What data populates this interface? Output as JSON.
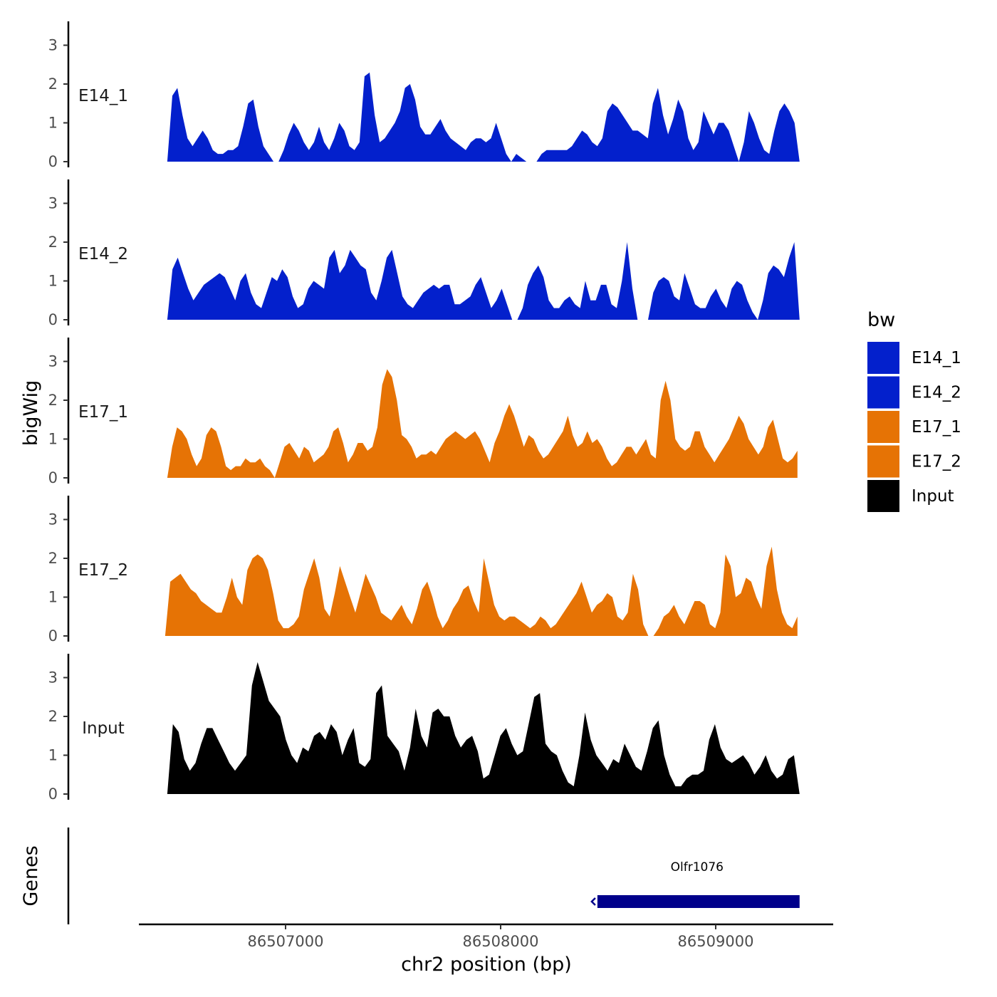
{
  "chart_data": {
    "type": "area",
    "ylabel": "bigWig",
    "xlabel": "chr2 position (bp)",
    "x_ticks": [
      "86507000",
      "86508000",
      "86509000"
    ],
    "x_tick_values": [
      86507000,
      86508000,
      86509000
    ],
    "xlim": [
      86506400,
      86509560
    ],
    "ylim": [
      0,
      3.5
    ],
    "y_ticks": [
      "0",
      "1",
      "2",
      "3"
    ],
    "colors": {
      "E14": "#0320cc",
      "E17": "#e67305",
      "Input": "#000000",
      "gene": "#00008b"
    },
    "legend": {
      "title": "bw",
      "position": "right",
      "entries": [
        {
          "label": "E14_1",
          "color": "#0320cc"
        },
        {
          "label": "E14_2",
          "color": "#0320cc"
        },
        {
          "label": "E17_1",
          "color": "#e67305"
        },
        {
          "label": "E17_2",
          "color": "#e67305"
        },
        {
          "label": "Input",
          "color": "#000000"
        }
      ]
    },
    "series": [
      {
        "name": "E14_1",
        "color": "#0320cc",
        "x_start": 86506450,
        "x_end": 86509390,
        "values": [
          0.0,
          1.7,
          1.9,
          1.2,
          0.6,
          0.4,
          0.6,
          0.8,
          0.6,
          0.3,
          0.2,
          0.2,
          0.3,
          0.3,
          0.4,
          0.9,
          1.5,
          1.6,
          0.9,
          0.4,
          0.2,
          0.0,
          0.0,
          0.3,
          0.7,
          1.0,
          0.8,
          0.5,
          0.3,
          0.5,
          0.9,
          0.5,
          0.3,
          0.6,
          1.0,
          0.8,
          0.4,
          0.3,
          0.5,
          2.2,
          2.3,
          1.2,
          0.5,
          0.6,
          0.8,
          1.0,
          1.3,
          1.9,
          2.0,
          1.6,
          0.9,
          0.7,
          0.7,
          0.9,
          1.1,
          0.8,
          0.6,
          0.5,
          0.4,
          0.3,
          0.5,
          0.6,
          0.6,
          0.5,
          0.6,
          1.0,
          0.6,
          0.2,
          0.0,
          0.2,
          0.1,
          0.0,
          0.0,
          0.0,
          0.2,
          0.3,
          0.3,
          0.3,
          0.3,
          0.3,
          0.4,
          0.6,
          0.8,
          0.7,
          0.5,
          0.4,
          0.6,
          1.3,
          1.5,
          1.4,
          1.2,
          1.0,
          0.8,
          0.8,
          0.7,
          0.6,
          1.5,
          1.9,
          1.2,
          0.7,
          1.1,
          1.6,
          1.3,
          0.6,
          0.3,
          0.5,
          1.3,
          1.0,
          0.7,
          1.0,
          1.0,
          0.8,
          0.4,
          0.0,
          0.5,
          1.3,
          1.0,
          0.6,
          0.3,
          0.2,
          0.8,
          1.3,
          1.5,
          1.3,
          1.0,
          0.0
        ]
      },
      {
        "name": "E14_2",
        "color": "#0320cc",
        "x_start": 86506450,
        "x_end": 86509390,
        "values": [
          0.0,
          1.3,
          1.6,
          1.2,
          0.8,
          0.5,
          0.7,
          0.9,
          1.0,
          1.1,
          1.2,
          1.1,
          0.8,
          0.5,
          1.0,
          1.2,
          0.7,
          0.4,
          0.3,
          0.7,
          1.1,
          1.0,
          1.3,
          1.1,
          0.6,
          0.3,
          0.4,
          0.8,
          1.0,
          0.9,
          0.8,
          1.6,
          1.8,
          1.2,
          1.4,
          1.8,
          1.6,
          1.4,
          1.3,
          0.7,
          0.5,
          1.0,
          1.6,
          1.8,
          1.2,
          0.6,
          0.4,
          0.3,
          0.5,
          0.7,
          0.8,
          0.9,
          0.8,
          0.9,
          0.9,
          0.4,
          0.4,
          0.5,
          0.6,
          0.9,
          1.1,
          0.7,
          0.3,
          0.5,
          0.8,
          0.4,
          0.0,
          0.0,
          0.3,
          0.9,
          1.2,
          1.4,
          1.1,
          0.5,
          0.3,
          0.3,
          0.5,
          0.6,
          0.4,
          0.3,
          1.0,
          0.5,
          0.5,
          0.9,
          0.9,
          0.4,
          0.3,
          1.0,
          2.0,
          0.8,
          0.0,
          0.0,
          0.0,
          0.7,
          1.0,
          1.1,
          1.0,
          0.6,
          0.5,
          1.2,
          0.8,
          0.4,
          0.3,
          0.3,
          0.6,
          0.8,
          0.5,
          0.3,
          0.8,
          1.0,
          0.9,
          0.5,
          0.2,
          0.0,
          0.5,
          1.2,
          1.4,
          1.3,
          1.1,
          1.6,
          2.0,
          0.0
        ]
      },
      {
        "name": "E17_1",
        "color": "#e67305",
        "x_start": 86506450,
        "x_end": 86509380,
        "values": [
          0.0,
          0.8,
          1.3,
          1.2,
          1.0,
          0.6,
          0.3,
          0.5,
          1.1,
          1.3,
          1.2,
          0.8,
          0.3,
          0.2,
          0.3,
          0.3,
          0.5,
          0.4,
          0.4,
          0.5,
          0.3,
          0.2,
          0.0,
          0.4,
          0.8,
          0.9,
          0.7,
          0.5,
          0.8,
          0.7,
          0.4,
          0.5,
          0.6,
          0.8,
          1.2,
          1.3,
          0.9,
          0.4,
          0.6,
          0.9,
          0.9,
          0.7,
          0.8,
          1.3,
          2.4,
          2.8,
          2.6,
          2.0,
          1.1,
          1.0,
          0.8,
          0.5,
          0.6,
          0.6,
          0.7,
          0.6,
          0.8,
          1.0,
          1.1,
          1.2,
          1.1,
          1.0,
          1.1,
          1.2,
          1.0,
          0.7,
          0.4,
          0.9,
          1.2,
          1.6,
          1.9,
          1.6,
          1.2,
          0.8,
          1.1,
          1.0,
          0.7,
          0.5,
          0.6,
          0.8,
          1.0,
          1.2,
          1.6,
          1.1,
          0.8,
          0.9,
          1.2,
          0.9,
          1.0,
          0.8,
          0.5,
          0.3,
          0.4,
          0.6,
          0.8,
          0.8,
          0.6,
          0.8,
          1.0,
          0.6,
          0.5,
          2.0,
          2.5,
          2.0,
          1.0,
          0.8,
          0.7,
          0.8,
          1.2,
          1.2,
          0.8,
          0.6,
          0.4,
          0.6,
          0.8,
          1.0,
          1.3,
          1.6,
          1.4,
          1.0,
          0.8,
          0.6,
          0.8,
          1.3,
          1.5,
          1.0,
          0.5,
          0.4,
          0.5,
          0.7
        ]
      },
      {
        "name": "E17_2",
        "color": "#e67305",
        "x_start": 86506440,
        "x_end": 86509380,
        "values": [
          0.0,
          1.4,
          1.5,
          1.6,
          1.4,
          1.2,
          1.1,
          0.9,
          0.8,
          0.7,
          0.6,
          0.6,
          1.0,
          1.5,
          1.0,
          0.8,
          1.7,
          2.0,
          2.1,
          2.0,
          1.7,
          1.1,
          0.4,
          0.2,
          0.2,
          0.3,
          0.5,
          1.2,
          1.6,
          2.0,
          1.5,
          0.7,
          0.5,
          1.1,
          1.8,
          1.4,
          1.0,
          0.6,
          1.1,
          1.6,
          1.3,
          1.0,
          0.6,
          0.5,
          0.4,
          0.6,
          0.8,
          0.5,
          0.3,
          0.7,
          1.2,
          1.4,
          1.0,
          0.5,
          0.2,
          0.4,
          0.7,
          0.9,
          1.2,
          1.3,
          0.9,
          0.6,
          2.0,
          1.4,
          0.8,
          0.5,
          0.4,
          0.5,
          0.5,
          0.4,
          0.3,
          0.2,
          0.3,
          0.5,
          0.4,
          0.2,
          0.3,
          0.5,
          0.7,
          0.9,
          1.1,
          1.4,
          1.0,
          0.6,
          0.8,
          0.9,
          1.1,
          1.0,
          0.5,
          0.4,
          0.6,
          1.6,
          1.2,
          0.3,
          0.0,
          0.0,
          0.2,
          0.5,
          0.6,
          0.8,
          0.5,
          0.3,
          0.6,
          0.9,
          0.9,
          0.8,
          0.3,
          0.2,
          0.6,
          2.1,
          1.8,
          1.0,
          1.1,
          1.5,
          1.4,
          1.0,
          0.7,
          1.8,
          2.3,
          1.2,
          0.6,
          0.3,
          0.2,
          0.5
        ]
      },
      {
        "name": "Input",
        "color": "#000000",
        "x_start": 86506450,
        "x_end": 86509390,
        "values": [
          0.0,
          1.8,
          1.6,
          0.9,
          0.6,
          0.8,
          1.3,
          1.7,
          1.7,
          1.4,
          1.1,
          0.8,
          0.6,
          0.8,
          1.0,
          2.8,
          3.4,
          2.9,
          2.4,
          2.2,
          2.0,
          1.4,
          1.0,
          0.8,
          1.2,
          1.1,
          1.5,
          1.6,
          1.4,
          1.8,
          1.6,
          1.0,
          1.4,
          1.7,
          0.8,
          0.7,
          0.9,
          2.6,
          2.8,
          1.5,
          1.3,
          1.1,
          0.6,
          1.2,
          2.2,
          1.5,
          1.2,
          2.1,
          2.2,
          2.0,
          2.0,
          1.5,
          1.2,
          1.4,
          1.5,
          1.1,
          0.4,
          0.5,
          1.0,
          1.5,
          1.7,
          1.3,
          1.0,
          1.1,
          1.8,
          2.5,
          2.6,
          1.3,
          1.1,
          1.0,
          0.6,
          0.3,
          0.2,
          1.0,
          2.1,
          1.4,
          1.0,
          0.8,
          0.6,
          0.9,
          0.8,
          1.3,
          1.0,
          0.7,
          0.6,
          1.1,
          1.7,
          1.9,
          1.0,
          0.5,
          0.2,
          0.2,
          0.4,
          0.5,
          0.5,
          0.6,
          1.4,
          1.8,
          1.2,
          0.9,
          0.8,
          0.9,
          1.0,
          0.8,
          0.5,
          0.7,
          1.0,
          0.6,
          0.4,
          0.5,
          0.9,
          1.0,
          0.0
        ]
      }
    ],
    "genes": {
      "panel_label": "Genes",
      "items": [
        {
          "name": "Olfr1076",
          "start": 86508450,
          "end": 86509390,
          "strand": "-"
        }
      ]
    }
  }
}
